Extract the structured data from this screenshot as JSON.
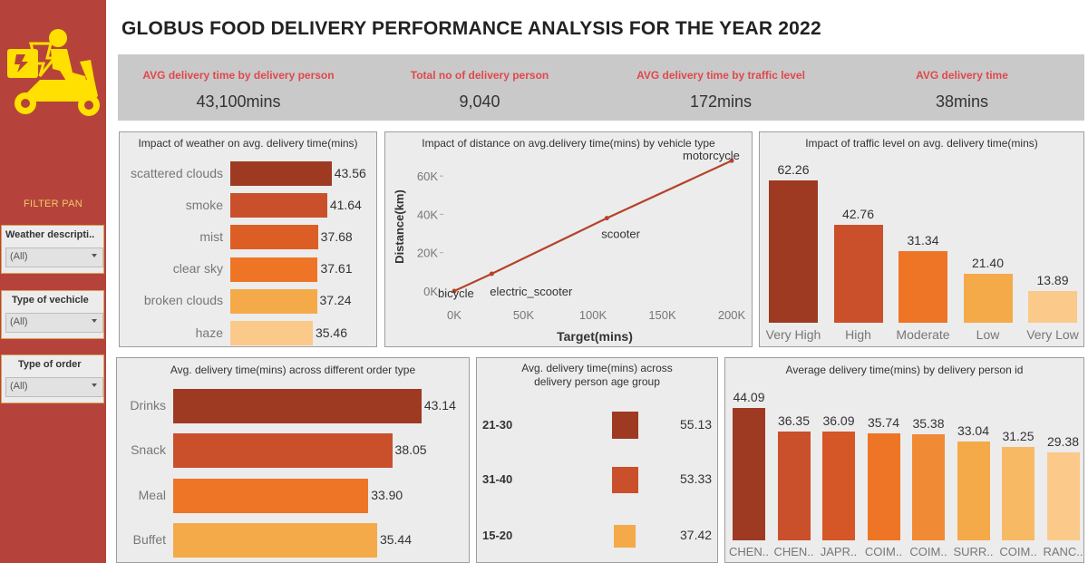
{
  "title": "GLOBUS FOOD DELIVERY PERFORMANCE ANALYSIS FOR THE YEAR 2022",
  "colors": {
    "sidebar": "#b5433b",
    "kpi_label": "#e0484d",
    "logo_yellow": "#ffe000",
    "palette": [
      "#9e3a22",
      "#c9502a",
      "#dd5e24",
      "#ee7526",
      "#f4aa48",
      "#fbc98a"
    ]
  },
  "sidebar": {
    "logo_icon": "delivery-scooter-icon",
    "filter_title": "FILTER PAN",
    "filters": [
      {
        "label": "Weather descripti..",
        "value": "(All)"
      },
      {
        "label": "Type of vechicle",
        "value": "(All)"
      },
      {
        "label": "Type of order",
        "value": "(All)"
      }
    ]
  },
  "kpis": [
    {
      "label": "AVG delivery time by delivery person",
      "value": "43,100mins"
    },
    {
      "label": "Total no of delivery person",
      "value": "9,040"
    },
    {
      "label": "AVG delivery time by traffic level",
      "value": "172mins"
    },
    {
      "label": "AVG delivery time",
      "value": "38mins"
    }
  ],
  "chart_data": [
    {
      "id": "weather",
      "type": "bar",
      "orientation": "horizontal",
      "title": "Impact of weather on avg. delivery time(mins)",
      "categories": [
        "scattered clouds",
        "smoke",
        "mist",
        "clear sky",
        "broken clouds",
        "haze"
      ],
      "values": [
        43.56,
        41.64,
        37.68,
        37.61,
        37.24,
        35.46
      ],
      "labels": [
        "43.56",
        "41.64",
        "37.68",
        "37.61",
        "37.24",
        "35.46"
      ],
      "xlim": [
        0,
        46
      ]
    },
    {
      "id": "distance",
      "type": "line",
      "title": "Impact of distance on avg.delivery time(mins) by vehicle type",
      "xlabel": "Target(mins)",
      "ylabel": "Distance(km)",
      "points": [
        {
          "name": "bicycle",
          "x": 0,
          "y": 0
        },
        {
          "name": "electric_scooter",
          "x": 27000,
          "y": 9000
        },
        {
          "name": "scooter",
          "x": 110000,
          "y": 38000
        },
        {
          "name": "motorcycle",
          "x": 200000,
          "y": 68000
        }
      ],
      "xticks": [
        0,
        50000,
        100000,
        150000,
        200000
      ],
      "xtick_labels": [
        "0K",
        "50K",
        "100K",
        "150K",
        "200K"
      ],
      "yticks": [
        0,
        20000,
        40000,
        60000
      ],
      "ytick_labels": [
        "0K",
        "20K",
        "40K",
        "60K"
      ],
      "xlim": [
        0,
        200000
      ],
      "ylim": [
        0,
        70000
      ]
    },
    {
      "id": "traffic",
      "type": "bar",
      "title": "Impact of traffic level on avg. delivery time(mins)",
      "categories": [
        "Very High",
        "High",
        "Moderate",
        "Low",
        "Very Low"
      ],
      "values": [
        62.26,
        42.76,
        31.34,
        21.4,
        13.89
      ],
      "labels": [
        "62.26",
        "42.76",
        "31.34",
        "21.40",
        "13.89"
      ],
      "ylim": [
        0,
        68
      ]
    },
    {
      "id": "order",
      "type": "bar",
      "orientation": "horizontal",
      "title": "Avg. delivery time(mins) across different order type",
      "categories": [
        "Drinks",
        "Snack",
        "Meal",
        "Buffet"
      ],
      "values": [
        43.14,
        38.05,
        33.9,
        35.44
      ],
      "labels": [
        "43.14",
        "38.05",
        "33.90",
        "35.44"
      ],
      "xlim": [
        0,
        46
      ]
    },
    {
      "id": "age",
      "type": "table",
      "title": "Avg. delivery time(mins) across delivery person age group",
      "categories": [
        "21-30",
        "31-40",
        "15-20"
      ],
      "values": [
        55.13,
        53.33,
        37.42
      ],
      "labels": [
        "55.13",
        "53.33",
        "37.42"
      ]
    },
    {
      "id": "person",
      "type": "bar",
      "title": "Average delivery time(mins) by delivery person id",
      "categories": [
        "CHEN..",
        "CHEN..",
        "JAPR..",
        "COIM..",
        "COIM..",
        "SURR..",
        "COIM..",
        "RANC.."
      ],
      "values": [
        44.09,
        36.35,
        36.09,
        35.74,
        35.38,
        33.04,
        31.25,
        29.38
      ],
      "labels": [
        "44.09",
        "36.35",
        "36.09",
        "35.74",
        "35.38",
        "33.04",
        "31.25",
        "29.38"
      ],
      "ylim": [
        0,
        44.09
      ]
    }
  ]
}
